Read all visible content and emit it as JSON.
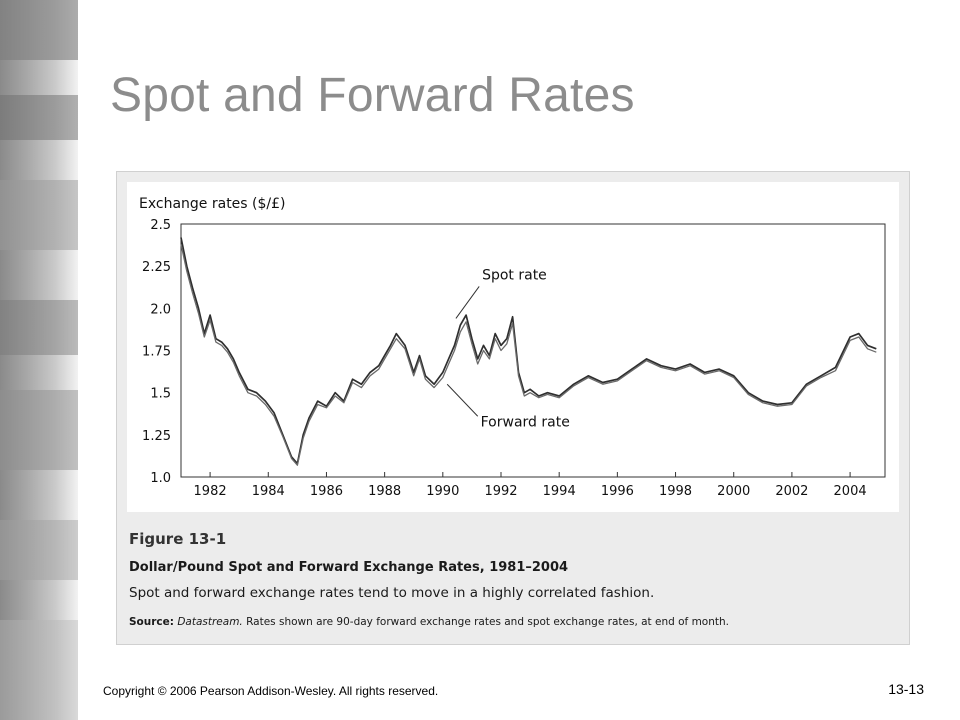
{
  "slide": {
    "title": "Spot and Forward Rates",
    "copyright": "Copyright © 2006 Pearson Addison-Wesley. All rights reserved.",
    "page_number": "13-13"
  },
  "figure": {
    "label": "Figure 13-1",
    "title": "Dollar/Pound Spot and Forward Exchange Rates, 1981–2004",
    "description": "Spot and forward exchange rates tend to move in a highly correlated fashion.",
    "source_label": "Source:",
    "source_name": "Datastream.",
    "source_text": " Rates shown are 90-day forward exchange rates and spot exchange rates, at end of month."
  },
  "colors": {
    "title": "#8c8c8c",
    "panel": "#ececec",
    "series": "#3a3a3a"
  },
  "chart_data": {
    "type": "line",
    "title": "Dollar/Pound Spot and Forward Exchange Rates, 1981–2004",
    "ylabel": "Exchange rates ($/£)",
    "xlabel": "",
    "xlim": [
      1981.0,
      2005.2
    ],
    "ylim": [
      1.0,
      2.5
    ],
    "yticks": [
      "2.5",
      "2.25",
      "2.0",
      "1.75",
      "1.5",
      "1.25",
      "1.0"
    ],
    "xticks": [
      "1982",
      "1984",
      "1986",
      "1988",
      "1990",
      "1992",
      "1994",
      "1996",
      "1998",
      "2000",
      "2002",
      "2004"
    ],
    "annotations": [
      {
        "text": "Spot rate",
        "x": 1990.6,
        "y": 1.96
      },
      {
        "text": "Forward rate",
        "x": 1991.3,
        "y": 1.33
      }
    ],
    "series": [
      {
        "name": "Spot rate",
        "x": [
          1981.0,
          1981.2,
          1981.4,
          1981.6,
          1981.8,
          1982.0,
          1982.2,
          1982.4,
          1982.6,
          1982.8,
          1983.0,
          1983.3,
          1983.6,
          1983.9,
          1984.2,
          1984.5,
          1984.8,
          1985.0,
          1985.2,
          1985.4,
          1985.7,
          1986.0,
          1986.3,
          1986.6,
          1986.9,
          1987.2,
          1987.5,
          1987.8,
          1988.0,
          1988.2,
          1988.4,
          1988.7,
          1989.0,
          1989.2,
          1989.4,
          1989.7,
          1990.0,
          1990.2,
          1990.4,
          1990.6,
          1990.8,
          1991.0,
          1991.2,
          1991.4,
          1991.6,
          1991.8,
          1992.0,
          1992.2,
          1992.4,
          1992.6,
          1992.8,
          1993.0,
          1993.3,
          1993.6,
          1994.0,
          1994.5,
          1995.0,
          1995.5,
          1996.0,
          1996.5,
          1997.0,
          1997.5,
          1998.0,
          1998.5,
          1999.0,
          1999.5,
          2000.0,
          2000.5,
          2001.0,
          2001.5,
          2002.0,
          2002.5,
          2003.0,
          2003.5,
          2004.0,
          2004.3,
          2004.6,
          2004.9
        ],
        "values": [
          2.42,
          2.25,
          2.12,
          2.0,
          1.85,
          1.96,
          1.82,
          1.8,
          1.76,
          1.7,
          1.62,
          1.52,
          1.5,
          1.45,
          1.38,
          1.25,
          1.12,
          1.08,
          1.25,
          1.35,
          1.45,
          1.42,
          1.5,
          1.45,
          1.58,
          1.55,
          1.62,
          1.66,
          1.72,
          1.78,
          1.85,
          1.78,
          1.62,
          1.72,
          1.6,
          1.55,
          1.62,
          1.7,
          1.78,
          1.9,
          1.96,
          1.82,
          1.7,
          1.78,
          1.72,
          1.85,
          1.78,
          1.82,
          1.95,
          1.62,
          1.5,
          1.52,
          1.48,
          1.5,
          1.48,
          1.55,
          1.6,
          1.56,
          1.58,
          1.64,
          1.7,
          1.66,
          1.64,
          1.67,
          1.62,
          1.64,
          1.6,
          1.5,
          1.45,
          1.43,
          1.44,
          1.55,
          1.6,
          1.65,
          1.83,
          1.85,
          1.78,
          1.76
        ]
      },
      {
        "name": "Forward rate",
        "x": [
          1981.0,
          1981.2,
          1981.4,
          1981.6,
          1981.8,
          1982.0,
          1982.2,
          1982.4,
          1982.6,
          1982.8,
          1983.0,
          1983.3,
          1983.6,
          1983.9,
          1984.2,
          1984.5,
          1984.8,
          1985.0,
          1985.2,
          1985.4,
          1985.7,
          1986.0,
          1986.3,
          1986.6,
          1986.9,
          1987.2,
          1987.5,
          1987.8,
          1988.0,
          1988.2,
          1988.4,
          1988.7,
          1989.0,
          1989.2,
          1989.4,
          1989.7,
          1990.0,
          1990.2,
          1990.4,
          1990.6,
          1990.8,
          1991.0,
          1991.2,
          1991.4,
          1991.6,
          1991.8,
          1992.0,
          1992.2,
          1992.4,
          1992.6,
          1992.8,
          1993.0,
          1993.3,
          1993.6,
          1994.0,
          1994.5,
          1995.0,
          1995.5,
          1996.0,
          1996.5,
          1997.0,
          1997.5,
          1998.0,
          1998.5,
          1999.0,
          1999.5,
          2000.0,
          2000.5,
          2001.0,
          2001.5,
          2002.0,
          2002.5,
          2003.0,
          2003.5,
          2004.0,
          2004.3,
          2004.6,
          2004.9
        ],
        "values": [
          2.38,
          2.22,
          2.09,
          1.97,
          1.83,
          1.93,
          1.8,
          1.78,
          1.74,
          1.68,
          1.6,
          1.5,
          1.48,
          1.43,
          1.36,
          1.24,
          1.11,
          1.07,
          1.23,
          1.33,
          1.43,
          1.41,
          1.48,
          1.44,
          1.56,
          1.53,
          1.6,
          1.64,
          1.7,
          1.76,
          1.82,
          1.76,
          1.6,
          1.7,
          1.58,
          1.53,
          1.59,
          1.67,
          1.75,
          1.86,
          1.92,
          1.79,
          1.67,
          1.75,
          1.7,
          1.82,
          1.75,
          1.79,
          1.91,
          1.6,
          1.48,
          1.5,
          1.47,
          1.49,
          1.47,
          1.54,
          1.59,
          1.55,
          1.57,
          1.63,
          1.69,
          1.65,
          1.63,
          1.66,
          1.61,
          1.63,
          1.59,
          1.49,
          1.44,
          1.42,
          1.43,
          1.54,
          1.59,
          1.63,
          1.81,
          1.83,
          1.76,
          1.74
        ]
      }
    ]
  }
}
